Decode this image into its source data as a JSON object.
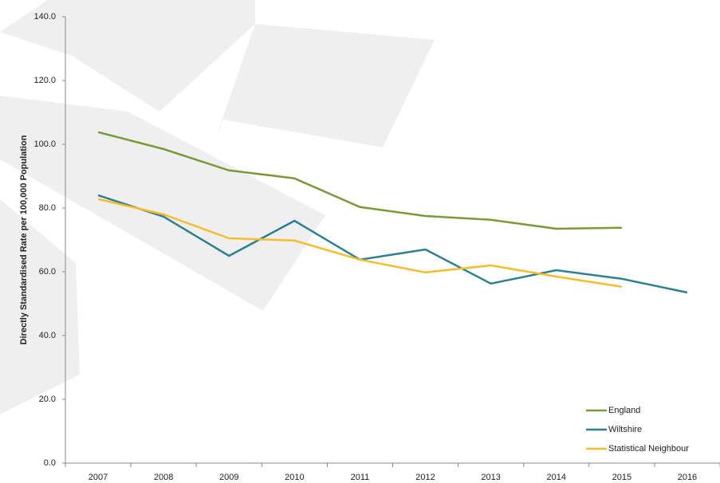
{
  "chart_data": {
    "type": "line",
    "y_label": "Directly Standardised Rate per 100,000 Population",
    "categories": [
      "2007",
      "2008",
      "2009",
      "2010",
      "2011",
      "2012",
      "2013",
      "2014",
      "2015",
      "2016"
    ],
    "series": [
      {
        "name": "England",
        "color": "#7a9a3a",
        "values": [
          103.8,
          98.5,
          91.8,
          89.3,
          80.3,
          77.5,
          76.3,
          73.5,
          73.8,
          null
        ]
      },
      {
        "name": "Wiltshire",
        "color": "#2e7f94",
        "values": [
          84.0,
          77.3,
          65.0,
          76.0,
          63.8,
          67.0,
          56.3,
          60.5,
          57.8,
          53.5
        ]
      },
      {
        "name": "Statistical Neighbour",
        "color": "#f5bd2a",
        "values": [
          82.8,
          78.0,
          70.5,
          69.8,
          63.8,
          59.8,
          62.0,
          58.5,
          55.3,
          null
        ]
      }
    ],
    "ylim": [
      0,
      140
    ],
    "yticks": [
      {
        "value": 0,
        "label": "0.0"
      },
      {
        "value": 20,
        "label": "20.0"
      },
      {
        "value": 40,
        "label": "40.0"
      },
      {
        "value": 60,
        "label": "60.0"
      },
      {
        "value": 80,
        "label": "80.0"
      },
      {
        "value": 100,
        "label": "100.0"
      },
      {
        "value": 120,
        "label": "120.0"
      },
      {
        "value": 140,
        "label": "140.0"
      }
    ],
    "legend": "bottom-right"
  }
}
